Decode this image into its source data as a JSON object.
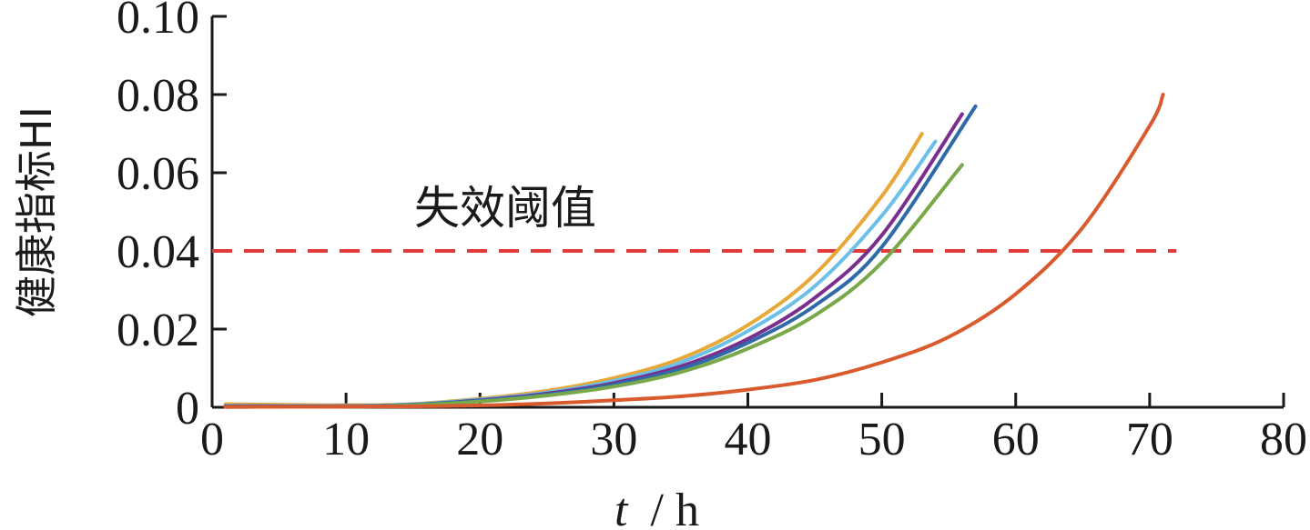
{
  "chart_data": {
    "type": "line",
    "xlabel": {
      "var": "t",
      "unit": "/ h"
    },
    "ylabel": "健康指标HI",
    "xlim": [
      0,
      80
    ],
    "ylim": [
      0,
      0.1
    ],
    "xticks": [
      0,
      10,
      20,
      30,
      40,
      50,
      60,
      70,
      80
    ],
    "xtick_labels": [
      "0",
      "10",
      "20",
      "30",
      "40",
      "50",
      "60",
      "70",
      "80"
    ],
    "yticks": [
      0,
      0.02,
      0.04,
      0.06,
      0.08,
      0.1
    ],
    "ytick_labels": [
      "0",
      "0.02",
      "0.04",
      "0.06",
      "0.08",
      "0.10"
    ],
    "grid": false,
    "legend": "none",
    "threshold": {
      "value": 0.04,
      "x_range": [
        0,
        72
      ],
      "label": "失效阈值",
      "color": "#e03a3a"
    },
    "series": [
      {
        "color": "#e8a838",
        "x": [
          1,
          13,
          20,
          25,
          30,
          35,
          40,
          45,
          50,
          53
        ],
        "y": [
          0.0008,
          0.0006,
          0.0022,
          0.0042,
          0.0075,
          0.0125,
          0.021,
          0.034,
          0.054,
          0.07
        ]
      },
      {
        "color": "#6cc0e8",
        "x": [
          1,
          13,
          20,
          25,
          30,
          35,
          40,
          45,
          50,
          54
        ],
        "y": [
          0.0004,
          0.0005,
          0.002,
          0.0038,
          0.0068,
          0.0115,
          0.0195,
          0.031,
          0.049,
          0.068
        ]
      },
      {
        "color": "#7a2e8e",
        "x": [
          1,
          13,
          20,
          25,
          30,
          35,
          40,
          45,
          50,
          56
        ],
        "y": [
          0.0003,
          0.0004,
          0.0018,
          0.0035,
          0.0062,
          0.0105,
          0.0175,
          0.028,
          0.044,
          0.075
        ]
      },
      {
        "color": "#2e6aa8",
        "x": [
          1,
          13,
          20,
          25,
          30,
          35,
          40,
          45,
          50,
          57
        ],
        "y": [
          0.0002,
          0.0004,
          0.0017,
          0.0033,
          0.0058,
          0.0098,
          0.0165,
          0.026,
          0.041,
          0.077
        ]
      },
      {
        "color": "#78a84a",
        "x": [
          1,
          13,
          20,
          25,
          30,
          35,
          40,
          45,
          50,
          56
        ],
        "y": [
          0.0001,
          0.0003,
          0.0015,
          0.003,
          0.0053,
          0.009,
          0.015,
          0.0235,
          0.037,
          0.062
        ]
      },
      {
        "color": "#d95a2e",
        "x": [
          1,
          13,
          20,
          25,
          30,
          35,
          40,
          45,
          50,
          55,
          60,
          65,
          70,
          71
        ],
        "y": [
          0.0001,
          0.0002,
          0.0005,
          0.001,
          0.0018,
          0.0028,
          0.0045,
          0.007,
          0.0115,
          0.018,
          0.029,
          0.046,
          0.072,
          0.08
        ]
      }
    ]
  }
}
